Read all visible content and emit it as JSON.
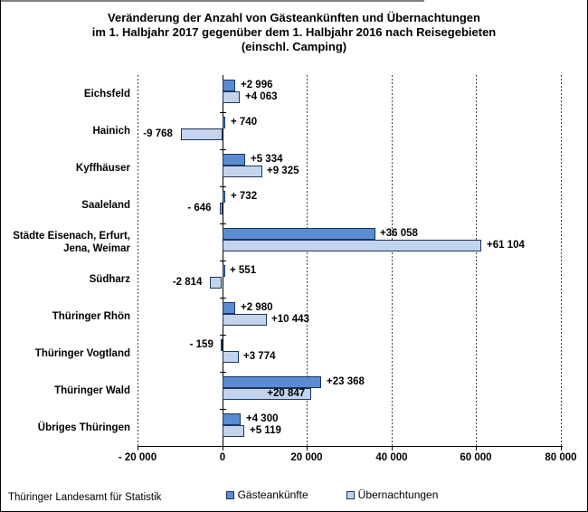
{
  "title": {
    "line1": "Veränderung der Anzahl von Gästeankünften und Übernachtungen",
    "line2": "im 1. Halbjahr 2017 gegenüber dem 1. Halbjahr 2016 nach Reisegebieten",
    "line3": "(einschl. Camping)"
  },
  "footer": {
    "source": "Thüringer Landesamt für Statistik"
  },
  "colors": {
    "gaesteankuenfte": "#5B8BD0",
    "uebernachtungen": "#C3D3EB",
    "bar_border": "#17375E",
    "axis": "#000000",
    "grid": "#404040",
    "plot_top_border": "#7F7F7F",
    "frame_border": "#000000",
    "text": "#000000"
  },
  "legend": {
    "items": [
      {
        "key": "gaesteankuenfte",
        "label": "Gästeankünfte"
      },
      {
        "key": "uebernachtungen",
        "label": "Übernachtungen"
      }
    ]
  },
  "chart_data": {
    "type": "bar",
    "orientation": "horizontal",
    "title": "Veränderung der Anzahl von Gästeankünften und Übernachtungen im 1. Halbjahr 2017 gegenüber dem 1. Halbjahr 2016 nach Reisegebieten (einschl. Camping)",
    "categories": [
      "Eichsfeld",
      "Hainich",
      "Kyffhäuser",
      "Saaleland",
      "Städte Eisenach, Erfurt, Jena, Weimar",
      "Südharz",
      "Thüringer Rhön",
      "Thüringer Vogtland",
      "Thüringer Wald",
      "Übriges Thüringen"
    ],
    "category_display_lines": [
      [
        "Eichsfeld"
      ],
      [
        "Hainich"
      ],
      [
        "Kyffhäuser"
      ],
      [
        "Saaleland"
      ],
      [
        "Städte Eisenach, Erfurt,",
        "Jena, Weimar"
      ],
      [
        "Südharz"
      ],
      [
        "Thüringer Rhön"
      ],
      [
        "Thüringer Vogtland"
      ],
      [
        "Thüringer Wald"
      ],
      [
        "Übriges Thüringen"
      ]
    ],
    "series": [
      {
        "name": "Gästeankünfte",
        "key": "gaesteankuenfte",
        "values": [
          2996,
          740,
          5334,
          732,
          36058,
          551,
          2980,
          -159,
          23368,
          4300
        ],
        "labels": [
          "+2 996",
          "+ 740",
          "+5 334",
          "+ 732",
          "+36 058",
          "+ 551",
          "+2 980",
          "- 159",
          "+23 368",
          "+4 300"
        ]
      },
      {
        "name": "Übernachtungen",
        "key": "uebernachtungen",
        "values": [
          4063,
          -9768,
          9325,
          -646,
          61104,
          -2814,
          10443,
          3774,
          20847,
          5119
        ],
        "labels": [
          "+4 063",
          "-9 768",
          "+9 325",
          "- 646",
          "+61 104",
          "-2 814",
          "+10 443",
          "+3 774",
          "+20 847",
          "+5 119"
        ]
      }
    ],
    "xlim": [
      -20000,
      80000
    ],
    "xticks": [
      -20000,
      0,
      20000,
      40000,
      60000,
      80000
    ],
    "xtick_labels": [
      "- 20 000",
      "0",
      "20 000",
      "40 000",
      "60 000",
      "80 000"
    ],
    "grid": "dashed-vertical-at-ticks",
    "legend_position": "bottom-center",
    "value_labels_inside": [
      {
        "series": "Übernachtungen",
        "category": "Thüringer Wald"
      }
    ]
  }
}
